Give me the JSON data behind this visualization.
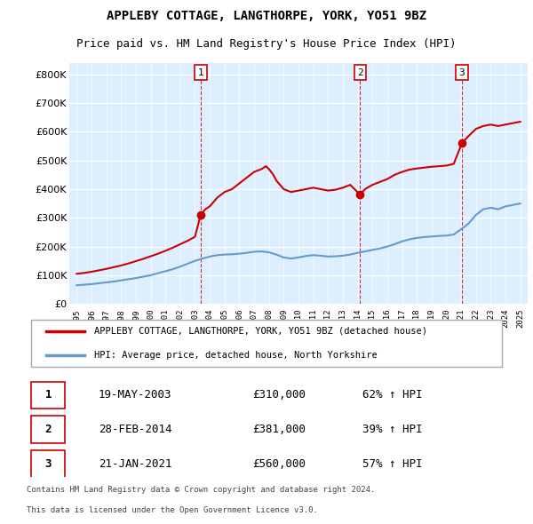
{
  "title": "APPLEBY COTTAGE, LANGTHORPE, YORK, YO51 9BZ",
  "subtitle": "Price paid vs. HM Land Registry's House Price Index (HPI)",
  "legend_label_red": "APPLEBY COTTAGE, LANGTHORPE, YORK, YO51 9BZ (detached house)",
  "legend_label_blue": "HPI: Average price, detached house, North Yorkshire",
  "transactions": [
    {
      "num": 1,
      "date": "19-MAY-2003",
      "price": 310000,
      "pct": "62%",
      "dir": "↑",
      "x_year": 2003.38
    },
    {
      "num": 2,
      "date": "28-FEB-2014",
      "price": 381000,
      "pct": "39%",
      "dir": "↑",
      "x_year": 2014.16
    },
    {
      "num": 3,
      "date": "21-JAN-2021",
      "price": 560000,
      "pct": "57%",
      "dir": "↑",
      "x_year": 2021.05
    }
  ],
  "footer_line1": "Contains HM Land Registry data © Crown copyright and database right 2024.",
  "footer_line2": "This data is licensed under the Open Government Licence v3.0.",
  "red_color": "#cc0000",
  "blue_color": "#6699cc",
  "dashed_color": "#cc0000",
  "background_chart": "#ddeeff",
  "ylim": [
    0,
    840000
  ],
  "yticks": [
    0,
    100000,
    200000,
    300000,
    400000,
    500000,
    600000,
    700000,
    800000
  ],
  "xmin": 1994.5,
  "xmax": 2025.5,
  "hpi_x": [
    1995,
    1995.5,
    1996,
    1996.5,
    1997,
    1997.5,
    1998,
    1998.5,
    1999,
    1999.5,
    2000,
    2000.5,
    2001,
    2001.5,
    2002,
    2002.5,
    2003,
    2003.5,
    2004,
    2004.5,
    2005,
    2005.5,
    2006,
    2006.5,
    2007,
    2007.5,
    2008,
    2008.5,
    2009,
    2009.5,
    2010,
    2010.5,
    2011,
    2011.5,
    2012,
    2012.5,
    2013,
    2013.5,
    2014,
    2014.5,
    2015,
    2015.5,
    2016,
    2016.5,
    2017,
    2017.5,
    2018,
    2018.5,
    2019,
    2019.5,
    2020,
    2020.5,
    2021,
    2021.5,
    2022,
    2022.5,
    2023,
    2023.5,
    2024,
    2024.5,
    2025
  ],
  "hpi_y": [
    65000,
    67000,
    69000,
    72000,
    75000,
    78000,
    82000,
    86000,
    90000,
    95000,
    100000,
    107000,
    114000,
    121000,
    130000,
    140000,
    150000,
    158000,
    165000,
    170000,
    172000,
    173000,
    175000,
    178000,
    182000,
    183000,
    180000,
    172000,
    162000,
    158000,
    162000,
    167000,
    170000,
    168000,
    165000,
    166000,
    168000,
    172000,
    178000,
    183000,
    188000,
    193000,
    200000,
    208000,
    218000,
    225000,
    230000,
    233000,
    235000,
    237000,
    238000,
    242000,
    260000,
    280000,
    310000,
    330000,
    335000,
    330000,
    340000,
    345000,
    350000
  ],
  "red_x": [
    1995,
    1995.5,
    1996,
    1996.5,
    1997,
    1997.5,
    1998,
    1998.5,
    1999,
    1999.5,
    2000,
    2000.5,
    2001,
    2001.5,
    2002,
    2002.5,
    2003.0,
    2003.38,
    2003.7,
    2004,
    2004.5,
    2005,
    2005.5,
    2006,
    2006.5,
    2007,
    2007.5,
    2007.8,
    2008,
    2008.3,
    2008.5,
    2009,
    2009.5,
    2010,
    2010.5,
    2011,
    2011.5,
    2012,
    2012.5,
    2013,
    2013.5,
    2014.16,
    2014.5,
    2015,
    2015.5,
    2016,
    2016.5,
    2017,
    2017.5,
    2018,
    2018.5,
    2019,
    2019.5,
    2020,
    2020.5,
    2021.05,
    2021.5,
    2022,
    2022.5,
    2023,
    2023.5,
    2024,
    2024.5,
    2025
  ],
  "red_y": [
    105000,
    108000,
    112000,
    117000,
    122000,
    128000,
    134000,
    141000,
    149000,
    157000,
    166000,
    175000,
    185000,
    196000,
    208000,
    220000,
    234000,
    310000,
    330000,
    340000,
    370000,
    390000,
    400000,
    420000,
    440000,
    460000,
    470000,
    480000,
    470000,
    450000,
    430000,
    400000,
    390000,
    395000,
    400000,
    405000,
    400000,
    395000,
    398000,
    405000,
    415000,
    381000,
    400000,
    415000,
    425000,
    435000,
    450000,
    460000,
    468000,
    472000,
    475000,
    478000,
    480000,
    482000,
    488000,
    560000,
    585000,
    610000,
    620000,
    625000,
    620000,
    625000,
    630000,
    635000
  ]
}
